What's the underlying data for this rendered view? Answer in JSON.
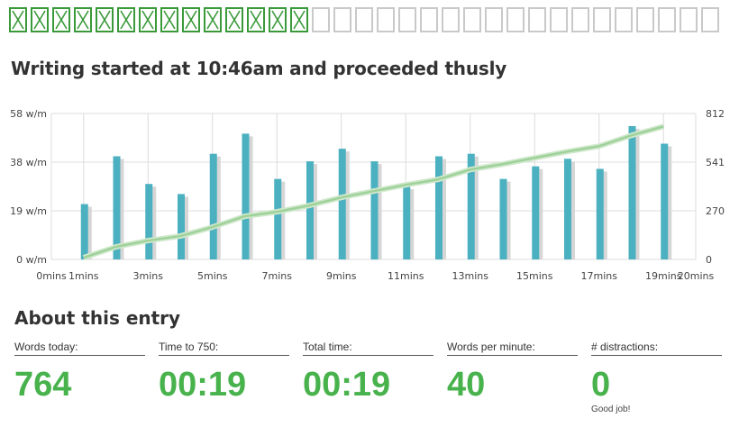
{
  "progress": {
    "total_boxes": 33,
    "completed_boxes": 14
  },
  "heading": "Writing started at 10:46am and proceeded thusly",
  "chart_data": {
    "type": "bar",
    "x": [
      1,
      2,
      3,
      4,
      5,
      6,
      7,
      8,
      9,
      10,
      11,
      12,
      13,
      14,
      15,
      16,
      17,
      18,
      19
    ],
    "series": [
      {
        "name": "",
        "kind": "bar",
        "axis": "left",
        "color": "#4bb0c0",
        "values": [
          22,
          41,
          30,
          26,
          42,
          50,
          32,
          39,
          44,
          39,
          29,
          41,
          42,
          32,
          37,
          40,
          36,
          53,
          46
        ]
      },
      {
        "name": "",
        "kind": "line",
        "axis": "right",
        "color": "#9fd19a",
        "values": [
          10,
          70,
          105,
          130,
          180,
          240,
          265,
          300,
          345,
          380,
          415,
          445,
          500,
          530,
          565,
          600,
          630,
          690,
          740
        ]
      }
    ],
    "left_ticks": [
      "0 w/m",
      "19 w/m",
      "38 w/m",
      "58 w/m"
    ],
    "right_ticks": [
      "0",
      "270",
      "541",
      "812"
    ],
    "x_ticks": [
      "0mins",
      "1mins",
      "3mins",
      "5mins",
      "7mins",
      "9mins",
      "11mins",
      "13mins",
      "15mins",
      "17mins",
      "19mins",
      "20mins"
    ],
    "ylim_left": [
      0,
      58
    ],
    "ylim_right": [
      0,
      812
    ],
    "xlim": [
      0,
      20
    ],
    "grid": true
  },
  "about_title": "About this entry",
  "stats": [
    {
      "label": "Words today:",
      "value": "764"
    },
    {
      "label": "Time to 750:",
      "value": "00:19"
    },
    {
      "label": "Total time:",
      "value": "00:19"
    },
    {
      "label": "Words per minute:",
      "value": "40"
    },
    {
      "label": "# distractions:",
      "value": "0",
      "note": "Good job!"
    }
  ],
  "colors": {
    "accent_green": "#48b24c",
    "bar_blue": "#4bb0c0",
    "line_green": "#9fd19a",
    "box_done": "#3a9a3a",
    "box_empty": "#c9c9c9"
  }
}
